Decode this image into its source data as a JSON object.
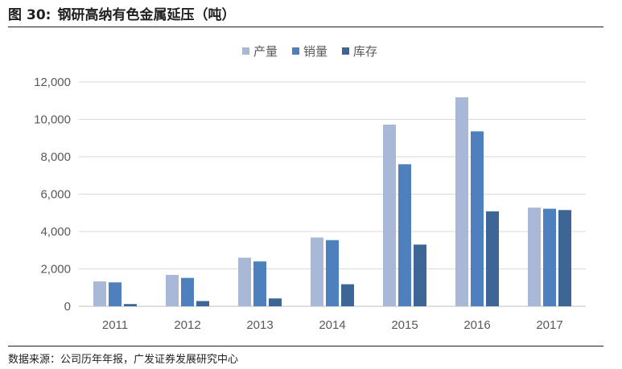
{
  "figure": {
    "label": "图",
    "number": "30:",
    "title": "钢研高纳有色金属延压（吨）"
  },
  "source_text": "数据来源：公司历年年报，广发证券发展研究中心",
  "colors": {
    "series": [
      "#a9b8d6",
      "#4e80bd",
      "#3d6596"
    ],
    "grid": "#d9d9d9",
    "axis": "#bfbfbf",
    "text": "#595959"
  },
  "chart_data": {
    "type": "bar",
    "title": "",
    "xlabel": "",
    "ylabel": "",
    "categories": [
      "2011",
      "2012",
      "2013",
      "2014",
      "2015",
      "2016",
      "2017"
    ],
    "series": [
      {
        "name": "产量",
        "values": [
          1330,
          1680,
          2600,
          3680,
          9720,
          11180,
          5280
        ]
      },
      {
        "name": "销量",
        "values": [
          1280,
          1520,
          2400,
          3540,
          7600,
          9360,
          5220
        ]
      },
      {
        "name": "库存",
        "values": [
          120,
          280,
          420,
          1180,
          3300,
          5080,
          5150
        ]
      }
    ],
    "ylim": [
      0,
      12000
    ],
    "yticks": [
      "0",
      "2,000",
      "4,000",
      "6,000",
      "8,000",
      "10,000",
      "12,000"
    ],
    "ytick_values": [
      0,
      2000,
      4000,
      6000,
      8000,
      10000,
      12000
    ],
    "grid": true,
    "legend_position": "top-center"
  }
}
